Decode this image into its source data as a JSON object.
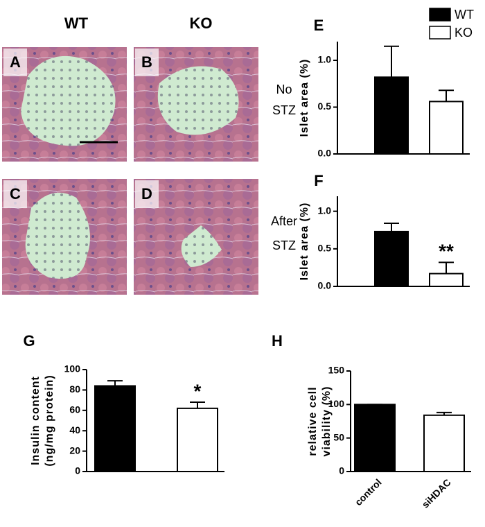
{
  "figure": {
    "column_labels": [
      "WT",
      "KO"
    ],
    "row_labels": [
      [
        "No",
        "STZ"
      ],
      [
        "After",
        "STZ"
      ]
    ],
    "image_panels": [
      "A",
      "B",
      "C",
      "D"
    ],
    "legend": [
      {
        "name": "WT",
        "color": "#000000"
      },
      {
        "name": "KO",
        "color": "#ffffff"
      }
    ]
  },
  "chart_data": [
    {
      "type": "bar",
      "panel": "E",
      "ylabel": [
        "Islet area (%)"
      ],
      "values": [
        0.82,
        0.56
      ],
      "errors": [
        0.33,
        0.12
      ],
      "colors": [
        "#000000",
        "#ffffff"
      ],
      "ylim": [
        0,
        1.2
      ],
      "yticks": [
        {
          "value": 0,
          "label": "0.0"
        },
        {
          "value": 0.5,
          "label": "0.5"
        },
        {
          "value": 1,
          "label": "1.0"
        }
      ]
    },
    {
      "type": "bar",
      "panel": "F",
      "ylabel": [
        "Islet area (%)"
      ],
      "values": [
        0.73,
        0.17
      ],
      "errors": [
        0.11,
        0.15
      ],
      "colors": [
        "#000000",
        "#ffffff"
      ],
      "annotations": [
        null,
        "**"
      ],
      "ylim": [
        0,
        1.2
      ],
      "yticks": [
        {
          "value": 0,
          "label": "0.0"
        },
        {
          "value": 0.5,
          "label": "0.5"
        },
        {
          "value": 1,
          "label": "1.0"
        }
      ]
    },
    {
      "type": "bar",
      "panel": "G",
      "ylabel": [
        "Insulin content",
        "(ng/mg protein)"
      ],
      "values": [
        84,
        62
      ],
      "errors": [
        5,
        6
      ],
      "colors": [
        "#000000",
        "#ffffff"
      ],
      "annotations": [
        null,
        "*"
      ],
      "ylim": [
        0,
        100
      ],
      "yticks": [
        0,
        20,
        40,
        60,
        80,
        100
      ]
    },
    {
      "type": "bar",
      "panel": "H",
      "ylabel": [
        "relative cell",
        "viability (%)"
      ],
      "categories": [
        "control",
        "siHDAC"
      ],
      "values": [
        100,
        84
      ],
      "errors": [
        0,
        4
      ],
      "colors": [
        "#000000",
        "#ffffff"
      ],
      "ylim": [
        0,
        150
      ],
      "yticks": [
        0,
        50,
        100,
        150
      ]
    }
  ]
}
